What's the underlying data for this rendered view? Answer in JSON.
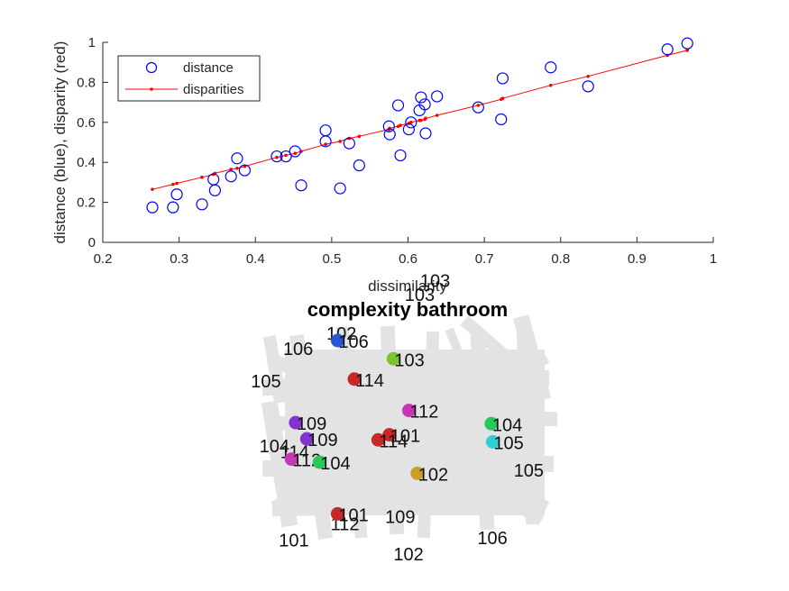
{
  "chart_data": [
    {
      "type": "scatter",
      "title": "",
      "xlabel": "dissimilarity",
      "ylabel": "distance (blue), disparity (red)",
      "xlim": [
        0.2,
        1
      ],
      "ylim": [
        0,
        1
      ],
      "x_ticks": [
        "0.2",
        "0.3",
        "0.4",
        "0.5",
        "0.6",
        "0.7",
        "0.8",
        "0.9",
        "1"
      ],
      "y_ticks": [
        "0",
        "0.2",
        "0.4",
        "0.6",
        "0.8",
        "1"
      ],
      "grid": false,
      "legend": {
        "location": "top-left",
        "entries": [
          "distance",
          "disparities"
        ]
      },
      "series": [
        {
          "name": "distance",
          "marker": "open-circle",
          "color": "#0000ff",
          "points": [
            [
              0.265,
              0.175
            ],
            [
              0.292,
              0.175
            ],
            [
              0.297,
              0.24
            ],
            [
              0.33,
              0.19
            ],
            [
              0.345,
              0.315
            ],
            [
              0.347,
              0.26
            ],
            [
              0.368,
              0.33
            ],
            [
              0.376,
              0.42
            ],
            [
              0.386,
              0.36
            ],
            [
              0.428,
              0.43
            ],
            [
              0.44,
              0.43
            ],
            [
              0.452,
              0.455
            ],
            [
              0.46,
              0.285
            ],
            [
              0.492,
              0.56
            ],
            [
              0.492,
              0.505
            ],
            [
              0.511,
              0.27
            ],
            [
              0.523,
              0.495
            ],
            [
              0.536,
              0.385
            ],
            [
              0.575,
              0.58
            ],
            [
              0.576,
              0.54
            ],
            [
              0.587,
              0.685
            ],
            [
              0.59,
              0.435
            ],
            [
              0.601,
              0.565
            ],
            [
              0.604,
              0.6
            ],
            [
              0.615,
              0.66
            ],
            [
              0.617,
              0.725
            ],
            [
              0.622,
              0.69
            ],
            [
              0.623,
              0.545
            ],
            [
              0.638,
              0.73
            ],
            [
              0.692,
              0.675
            ],
            [
              0.722,
              0.615
            ],
            [
              0.724,
              0.82
            ],
            [
              0.787,
              0.875
            ],
            [
              0.836,
              0.78
            ],
            [
              0.94,
              0.965
            ],
            [
              0.966,
              0.995
            ]
          ]
        },
        {
          "name": "disparities",
          "marker": "dot-line",
          "color": "#ff0000",
          "points": [
            [
              0.265,
              0.265
            ],
            [
              0.292,
              0.29
            ],
            [
              0.297,
              0.295
            ],
            [
              0.33,
              0.325
            ],
            [
              0.345,
              0.34
            ],
            [
              0.347,
              0.345
            ],
            [
              0.368,
              0.365
            ],
            [
              0.376,
              0.37
            ],
            [
              0.386,
              0.38
            ],
            [
              0.428,
              0.425
            ],
            [
              0.44,
              0.435
            ],
            [
              0.452,
              0.445
            ],
            [
              0.46,
              0.455
            ],
            [
              0.492,
              0.49
            ],
            [
              0.492,
              0.49
            ],
            [
              0.511,
              0.505
            ],
            [
              0.523,
              0.52
            ],
            [
              0.536,
              0.53
            ],
            [
              0.575,
              0.565
            ],
            [
              0.576,
              0.57
            ],
            [
              0.587,
              0.58
            ],
            [
              0.59,
              0.585
            ],
            [
              0.601,
              0.595
            ],
            [
              0.604,
              0.6
            ],
            [
              0.615,
              0.61
            ],
            [
              0.617,
              0.61
            ],
            [
              0.622,
              0.615
            ],
            [
              0.623,
              0.62
            ],
            [
              0.638,
              0.635
            ],
            [
              0.692,
              0.685
            ],
            [
              0.722,
              0.715
            ],
            [
              0.724,
              0.72
            ],
            [
              0.787,
              0.785
            ],
            [
              0.836,
              0.83
            ],
            [
              0.94,
              0.935
            ],
            [
              0.966,
              0.96
            ]
          ]
        }
      ]
    },
    {
      "type": "scatter",
      "title": "complexity bathroom",
      "description_of_background": "grey thick-line layout drawing",
      "xlim": [
        0,
        100
      ],
      "ylim": [
        0,
        100
      ],
      "axes_visible": false,
      "points": [
        {
          "label": "106",
          "color": "#2557d6",
          "x": 24.0,
          "y": 92.0
        },
        {
          "label": "103",
          "color": "#7ac52e",
          "x": 44.0,
          "y": 83.0
        },
        {
          "label": "114",
          "color": "#c8282a",
          "x": 30.0,
          "y": 73.0
        },
        {
          "label": "112",
          "color": "#c637b5",
          "x": 49.5,
          "y": 57.5
        },
        {
          "label": "104",
          "color": "#28c85a",
          "x": 79.0,
          "y": 51.0
        },
        {
          "label": "109",
          "color": "#8333d0",
          "x": 9.0,
          "y": 51.5
        },
        {
          "label": "101",
          "color": "#c8282a",
          "x": 42.5,
          "y": 45.5
        },
        {
          "label": "109",
          "color": "#8333d0",
          "x": 13.0,
          "y": 43.5
        },
        {
          "label": "114",
          "color": "#c8282a",
          "x": 38.5,
          "y": 43.0
        },
        {
          "label": "105",
          "color": "#2ed0d6",
          "x": 79.5,
          "y": 42.0
        },
        {
          "label": "112",
          "color": "#c637b5",
          "x": 7.5,
          "y": 33.5
        },
        {
          "label": "104",
          "color": "#28c85a",
          "x": 17.5,
          "y": 32.0
        },
        {
          "label": "102",
          "color": "#c8a02a",
          "x": 52.5,
          "y": 26.5
        },
        {
          "label": "101",
          "color": "#c8282a",
          "x": 24.0,
          "y": 6.5
        }
      ],
      "outside_labels": [
        {
          "label": "103",
          "x": 53.5,
          "y": 118.5
        },
        {
          "label": "103",
          "x": 48.0,
          "y": 111.5
        },
        {
          "label": "102",
          "x": 20.0,
          "y": 92.5
        },
        {
          "label": "106",
          "x": 4.5,
          "y": 85.0
        },
        {
          "label": "105",
          "x": -7.0,
          "y": 69.0
        },
        {
          "label": "104",
          "x": -4.0,
          "y": 37.0
        },
        {
          "label": "114",
          "x": 3.5,
          "y": 34.0
        },
        {
          "label": "105",
          "x": 87.0,
          "y": 25.0
        },
        {
          "label": "112",
          "x": 21.5,
          "y": -1.5
        },
        {
          "label": "109",
          "x": 41.0,
          "y": 2.0
        },
        {
          "label": "101",
          "x": 3.0,
          "y": -9.5
        },
        {
          "label": "106",
          "x": 74.0,
          "y": -8.5
        },
        {
          "label": "102",
          "x": 44.0,
          "y": -16.5
        }
      ]
    }
  ]
}
